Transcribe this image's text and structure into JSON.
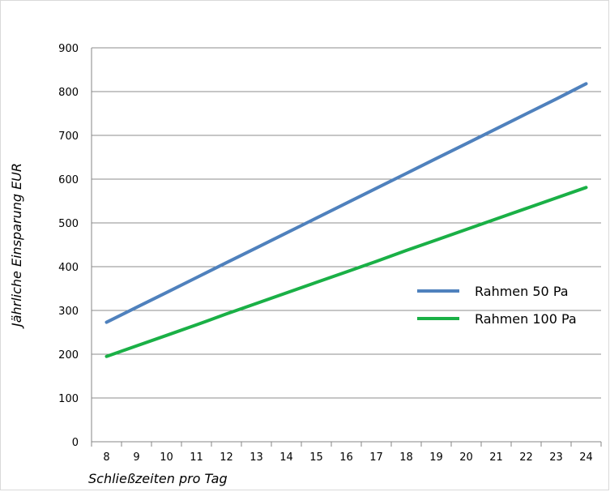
{
  "chart_data": {
    "type": "line",
    "title": "",
    "xlabel": "Schließzeiten pro Tag",
    "ylabel": "Jährliche Einsparung EUR",
    "x": [
      8,
      9,
      10,
      11,
      12,
      13,
      14,
      15,
      16,
      17,
      18,
      19,
      20,
      21,
      22,
      23,
      24
    ],
    "ylim": [
      0,
      900
    ],
    "yticks": [
      0,
      100,
      200,
      300,
      400,
      500,
      600,
      700,
      800,
      900
    ],
    "grid": "horizontal",
    "legend_position": "right",
    "series": [
      {
        "name": "Rahmen 50 Pa",
        "color": "#4f81bd",
        "values": [
          273,
          307,
          341,
          375,
          409,
          443,
          477,
          511,
          545,
          579,
          613,
          647,
          681,
          715,
          749,
          783,
          818
        ]
      },
      {
        "name": "Rahmen 100 Pa",
        "color": "#1ab046",
        "values": [
          195,
          219,
          243,
          267,
          292,
          316,
          340,
          364,
          388,
          412,
          437,
          461,
          485,
          509,
          533,
          557,
          581
        ]
      }
    ]
  }
}
